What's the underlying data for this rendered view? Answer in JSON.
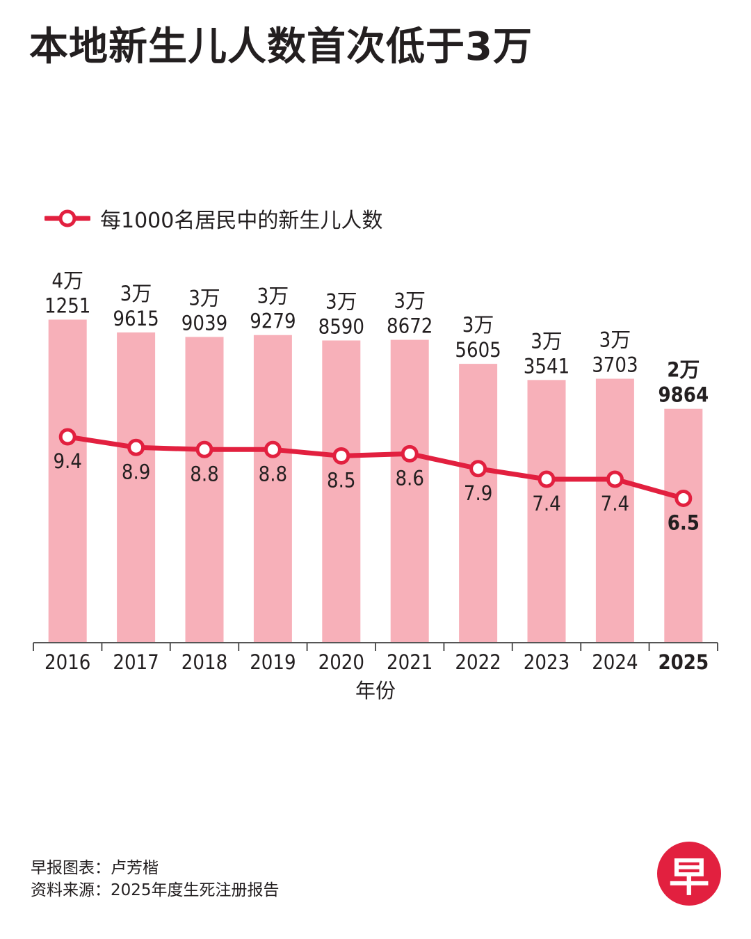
{
  "title": "本地新生儿人数首次低于3万",
  "colors": {
    "bar": "#f7b0b9",
    "line": "#e2203f",
    "text": "#231f20",
    "axis": "#555555"
  },
  "credits": {
    "chart_by": "早报图表：卢芳楷",
    "source": "资料来源：2025年度生死注册报告"
  },
  "logo": {
    "text": "早"
  },
  "chart_data": {
    "type": "bar",
    "categories": [
      "2016",
      "2017",
      "2018",
      "2019",
      "2020",
      "2021",
      "2022",
      "2023",
      "2024",
      "2025"
    ],
    "highlight_category": "2025",
    "xlabel": "年份",
    "bar_series": {
      "values": [
        41251,
        39615,
        39039,
        39279,
        38590,
        38672,
        35605,
        33541,
        33703,
        29864
      ],
      "labels": [
        [
          "4万",
          "1251"
        ],
        [
          "3万",
          "9615"
        ],
        [
          "3万",
          "9039"
        ],
        [
          "3万",
          "9279"
        ],
        [
          "3万",
          "8590"
        ],
        [
          "3万",
          "8672"
        ],
        [
          "3万",
          "5605"
        ],
        [
          "3万",
          "3541"
        ],
        [
          "3万",
          "3703"
        ],
        [
          "2万",
          "9864"
        ]
      ]
    },
    "line_series": {
      "name": "每1000名居民中的新生儿人数",
      "values": [
        9.4,
        8.9,
        8.8,
        8.8,
        8.5,
        8.6,
        7.9,
        7.4,
        7.4,
        6.5
      ],
      "labels": [
        "9.4",
        "8.9",
        "8.8",
        "8.8",
        "8.5",
        "8.6",
        "7.9",
        "7.4",
        "7.4",
        "6.5"
      ]
    },
    "legend_position": "top-left",
    "grid": false
  }
}
